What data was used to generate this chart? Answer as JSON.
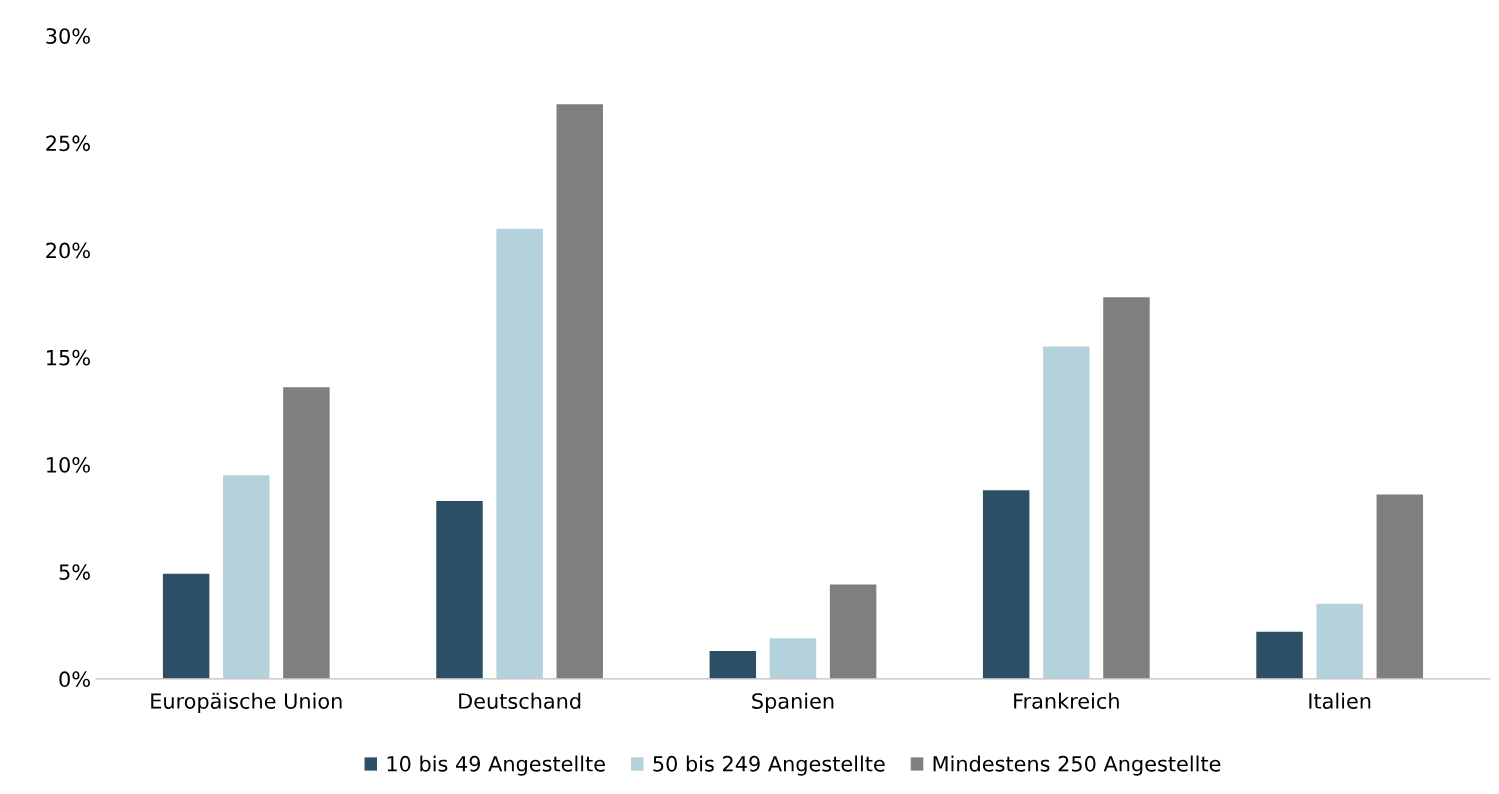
{
  "chart_data": {
    "type": "bar",
    "categories": [
      "Europäische Union",
      "Deutschand",
      "Spanien",
      "Frankreich",
      "Italien"
    ],
    "series": [
      {
        "name": "10 bis 49 Angestellte",
        "color": "#2c4f65",
        "values": [
          4.9,
          8.3,
          1.3,
          8.8,
          2.2
        ]
      },
      {
        "name": "50 bis 249 Angestellte",
        "color": "#b3d2dc",
        "values": [
          9.5,
          21.0,
          1.9,
          15.5,
          3.5
        ]
      },
      {
        "name": "Mindestens 250 Angestellte",
        "color": "#7f7f7f",
        "values": [
          13.6,
          26.8,
          4.4,
          17.8,
          8.6
        ]
      }
    ],
    "ylim": [
      0,
      30
    ],
    "yticks": [
      {
        "value": 0,
        "label": "0%"
      },
      {
        "value": 5,
        "label": "5%"
      },
      {
        "value": 10,
        "label": "10%"
      },
      {
        "value": 15,
        "label": "15%"
      },
      {
        "value": 20,
        "label": "20%"
      },
      {
        "value": 25,
        "label": "25%"
      },
      {
        "value": 30,
        "label": "30%"
      }
    ],
    "grid": false,
    "legend": "bottom"
  }
}
